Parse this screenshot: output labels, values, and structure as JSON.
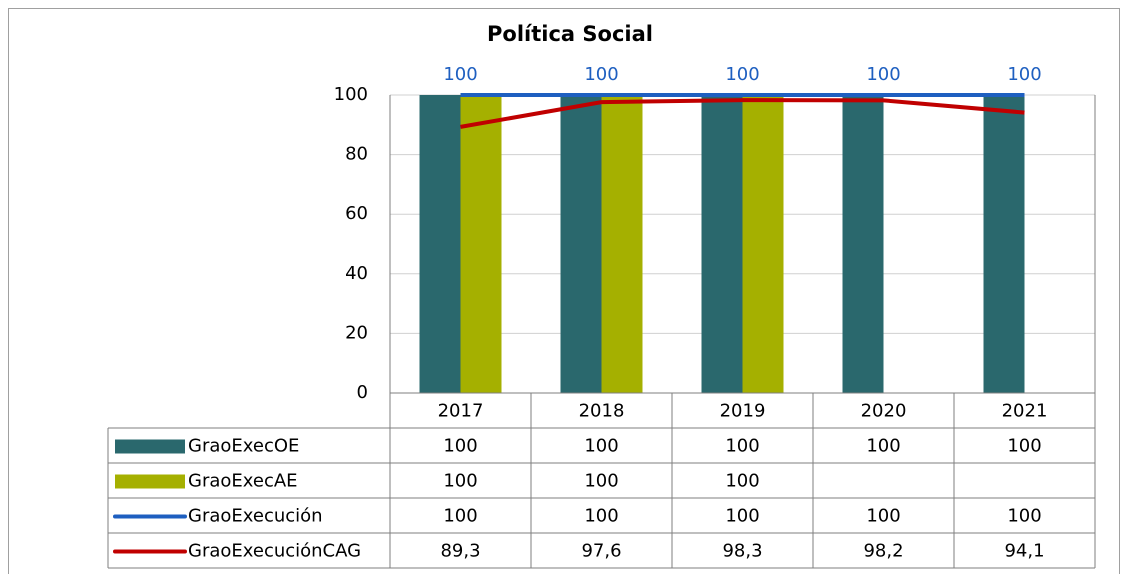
{
  "chart_data": {
    "type": "bar",
    "title": "Política Social",
    "categories": [
      "2017",
      "2018",
      "2019",
      "2020",
      "2021"
    ],
    "series": [
      {
        "name": "GraoExecOE",
        "type": "bar",
        "color": "#2a686d",
        "values": [
          100,
          100,
          100,
          100,
          100
        ]
      },
      {
        "name": "GraoExecAE",
        "type": "bar",
        "color": "#a5b000",
        "values": [
          100,
          100,
          100,
          null,
          null
        ]
      },
      {
        "name": "GraoExecución",
        "type": "line",
        "color": "#1e5fc0",
        "values": [
          100,
          100,
          100,
          100,
          100
        ],
        "data_labels": true
      },
      {
        "name": "GraoExecuciónCAG",
        "type": "line",
        "color": "#c00000",
        "values": [
          89.3,
          97.6,
          98.3,
          98.2,
          94.1
        ],
        "value_labels": [
          "89,3",
          "97,6",
          "98,3",
          "98,2",
          "94,1"
        ]
      }
    ],
    "ylim": [
      0,
      100
    ],
    "yticks": [
      0,
      20,
      40,
      60,
      80,
      100
    ],
    "grid": true,
    "data_table": true
  }
}
